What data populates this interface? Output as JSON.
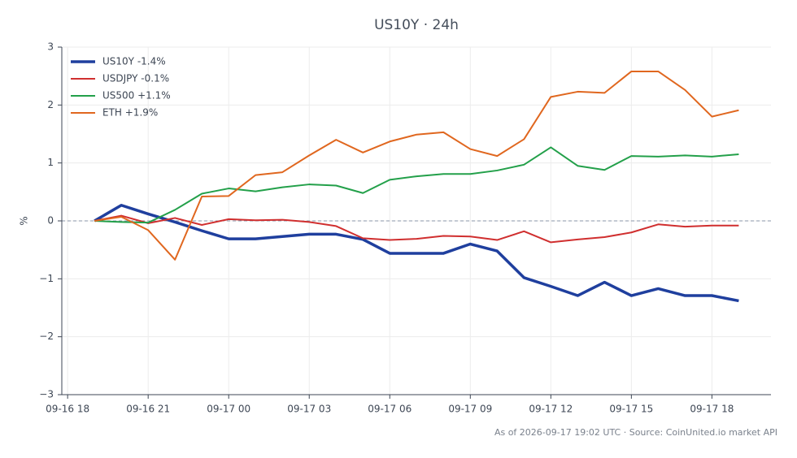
{
  "chart_data": {
    "type": "line",
    "title": "US10Y · 24h",
    "ylabel": "%",
    "footer": "As of 2026-09-17 19:02 UTC · Source: CoinUnited.io market API",
    "x": [
      "09-16 19",
      "09-16 20",
      "09-16 21",
      "09-16 22",
      "09-16 23",
      "09-17 00",
      "09-17 01",
      "09-17 02",
      "09-17 03",
      "09-17 04",
      "09-17 05",
      "09-17 06",
      "09-17 07",
      "09-17 08",
      "09-17 09",
      "09-17 10",
      "09-17 11",
      "09-17 12",
      "09-17 13",
      "09-17 14",
      "09-17 15",
      "09-17 16",
      "09-17 17",
      "09-17 18",
      "09-17 19"
    ],
    "xlim": [
      "09-16 17:47",
      "09-17 20:12"
    ],
    "xticks": [
      "09-16 18",
      "09-16 21",
      "09-17 00",
      "09-17 03",
      "09-17 06",
      "09-17 09",
      "09-17 12",
      "09-17 15",
      "09-17 18"
    ],
    "ylim": [
      -3,
      3
    ],
    "yticks": [
      {
        "value": -3,
        "label": "−3"
      },
      {
        "value": -2,
        "label": "−2"
      },
      {
        "value": -1,
        "label": "−1"
      },
      0,
      1,
      2,
      3
    ],
    "grid": true,
    "reference_line": 0,
    "legend": "upper left",
    "series": [
      {
        "name": "US10Y -1.4%",
        "color": "#1f3f9e",
        "linewidth": 3.5,
        "values": [
          0,
          0.27,
          0.12,
          -0.02,
          -0.17,
          -0.31,
          -0.31,
          -0.27,
          -0.23,
          -0.23,
          -0.32,
          -0.56,
          -0.56,
          -0.56,
          -0.4,
          -0.52,
          -0.98,
          -1.13,
          -1.29,
          -1.06,
          -1.29,
          -1.17,
          -1.29,
          -1.29,
          -1.38
        ]
      },
      {
        "name": "USDJPY -0.1%",
        "color": "#d02f2f",
        "linewidth": 2,
        "values": [
          0,
          0.09,
          -0.04,
          0.05,
          -0.07,
          0.03,
          0.01,
          0.02,
          -0.02,
          -0.09,
          -0.3,
          -0.33,
          -0.31,
          -0.26,
          -0.27,
          -0.33,
          -0.18,
          -0.37,
          -0.32,
          -0.28,
          -0.2,
          -0.06,
          -0.1,
          -0.08,
          -0.08
        ]
      },
      {
        "name": "US500 +1.1%",
        "color": "#23a04a",
        "linewidth": 2,
        "values": [
          0,
          -0.02,
          -0.03,
          0.19,
          0.47,
          0.56,
          0.51,
          0.58,
          0.63,
          0.61,
          0.48,
          0.71,
          0.77,
          0.81,
          0.81,
          0.87,
          0.97,
          1.27,
          0.95,
          0.88,
          1.12,
          1.11,
          1.13,
          1.11,
          1.15
        ]
      },
      {
        "name": "ETH +1.9%",
        "color": "#e0671f",
        "linewidth": 2,
        "values": [
          0,
          0.07,
          -0.16,
          -0.67,
          0.42,
          0.43,
          0.79,
          0.84,
          1.13,
          1.4,
          1.18,
          1.37,
          1.49,
          1.53,
          1.24,
          1.12,
          1.41,
          2.14,
          2.23,
          2.21,
          2.58,
          2.58,
          2.26,
          1.8,
          1.91
        ]
      }
    ]
  }
}
